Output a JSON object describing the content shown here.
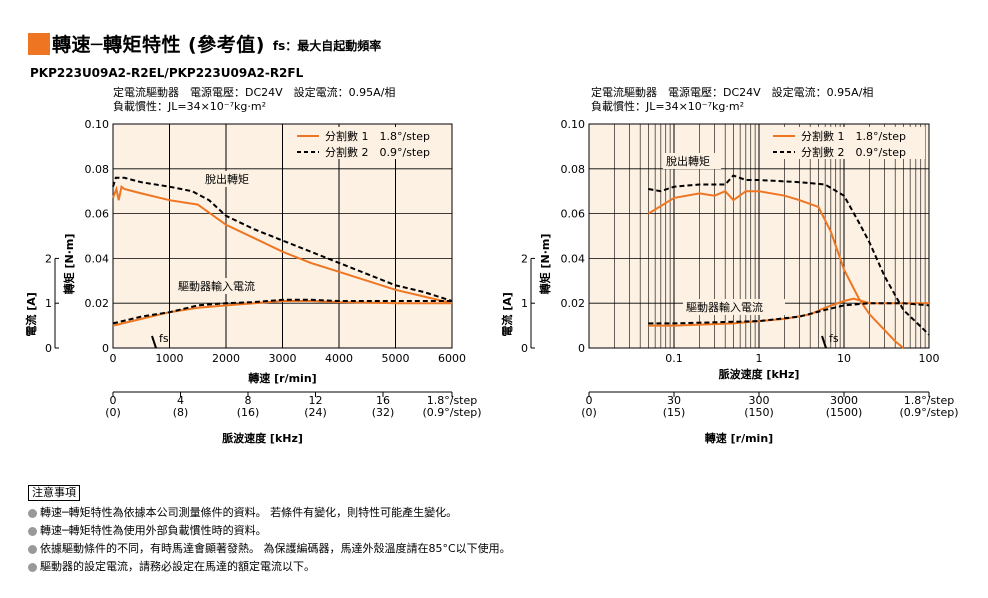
{
  "header": {
    "title": "轉速─轉矩特性 (參考值)",
    "subtitle": "fs：最大自起動頻率",
    "model": "PKP223U09A2-R2EL/PKP223U09A2-R2FL"
  },
  "colors": {
    "orange": "#ee7623",
    "bg": "#fdf1e3",
    "dashed": "#000000"
  },
  "chart_data": [
    {
      "type": "line",
      "conditions": [
        "定電流驅動器　電源電壓：DC24V　設定電流：0.95A/相",
        "負載慣性：JL=34×10⁻⁷kg·m²"
      ],
      "xlabel": "轉速 [r/min]",
      "x_ticks": [
        "0",
        "1000",
        "2000",
        "3000",
        "4000",
        "5000",
        "6000"
      ],
      "xlim": [
        0,
        6000
      ],
      "ylabel": "轉矩 [N·m]",
      "y_ticks": [
        "0",
        "0.02",
        "0.04",
        "0.06",
        "0.08",
        "0.10"
      ],
      "ylim": [
        0,
        0.1
      ],
      "current_label": "電流 [A]",
      "current_ticks": [
        "0",
        "1",
        "2"
      ],
      "sub_axis_label": "脈波速度 [kHz]",
      "sub_axis_ticks_top": [
        "0",
        "4",
        "8",
        "12",
        "16",
        "1.8°/step"
      ],
      "sub_axis_ticks_bottom": [
        "(0)",
        "(8)",
        "(16)",
        "(24)",
        "(32)",
        "(0.9°/step)"
      ],
      "legend": [
        "分割數 1　1.8°/step",
        "分割數 2　0.9°/step"
      ],
      "annotations": {
        "pullout": "脫出轉矩",
        "input_current": "驅動器輸入電流",
        "fs": "fs"
      },
      "series": [
        {
          "name": "分割數 1　1.8°/step",
          "style": "solid",
          "torque": [
            [
              0,
              0.067
            ],
            [
              60,
              0.071
            ],
            [
              100,
              0.066
            ],
            [
              150,
              0.072
            ],
            [
              200,
              0.071
            ],
            [
              500,
              0.069
            ],
            [
              1000,
              0.066
            ],
            [
              1500,
              0.064
            ],
            [
              2000,
              0.055
            ],
            [
              2500,
              0.049
            ],
            [
              3000,
              0.043
            ],
            [
              3500,
              0.038
            ],
            [
              4000,
              0.034
            ],
            [
              4500,
              0.03
            ],
            [
              5000,
              0.026
            ],
            [
              5500,
              0.023
            ],
            [
              6000,
              0.02
            ]
          ],
          "current": [
            [
              0,
              0.01
            ],
            [
              500,
              0.013
            ],
            [
              1000,
              0.016
            ],
            [
              1500,
              0.018
            ],
            [
              2000,
              0.019
            ],
            [
              2500,
              0.02
            ],
            [
              3000,
              0.021
            ],
            [
              3500,
              0.021
            ],
            [
              4000,
              0.0205
            ],
            [
              5000,
              0.02
            ],
            [
              6000,
              0.02
            ]
          ]
        },
        {
          "name": "分割數 2　0.9°/step",
          "style": "dashed",
          "torque": [
            [
              0,
              0.072
            ],
            [
              50,
              0.076
            ],
            [
              200,
              0.076
            ],
            [
              500,
              0.074
            ],
            [
              1000,
              0.072
            ],
            [
              1400,
              0.07
            ],
            [
              1700,
              0.066
            ],
            [
              2000,
              0.059
            ],
            [
              2500,
              0.053
            ],
            [
              3000,
              0.048
            ],
            [
              3500,
              0.043
            ],
            [
              4000,
              0.038
            ],
            [
              4500,
              0.033
            ],
            [
              5000,
              0.028
            ],
            [
              5500,
              0.025
            ],
            [
              6000,
              0.021
            ]
          ],
          "current": [
            [
              0,
              0.011
            ],
            [
              500,
              0.014
            ],
            [
              1000,
              0.016
            ],
            [
              1500,
              0.019
            ],
            [
              2000,
              0.02
            ],
            [
              2500,
              0.0205
            ],
            [
              3000,
              0.0215
            ],
            [
              3500,
              0.0215
            ],
            [
              4000,
              0.021
            ],
            [
              5000,
              0.021
            ],
            [
              6000,
              0.021
            ]
          ]
        }
      ]
    },
    {
      "type": "line",
      "conditions": [
        "定電流驅動器　電源電壓：DC24V　設定電流：0.95A/相",
        "負載慣性：JL=34×10⁻⁷kg·m²"
      ],
      "xlabel": "脈波速度 [kHz]",
      "x_scale": "log",
      "x_ticks": [
        "0.1",
        "1",
        "10",
        "100"
      ],
      "xlim": [
        0.01,
        100
      ],
      "ylabel": "轉矩 [N·m]",
      "y_ticks": [
        "0",
        "0.02",
        "0.04",
        "0.06",
        "0.08",
        "0.10"
      ],
      "ylim": [
        0,
        0.1
      ],
      "current_label": "電流 [A]",
      "current_ticks": [
        "0",
        "1",
        "2"
      ],
      "sub_axis_label": "轉速 [r/min]",
      "sub_axis_ticks_top": [
        "0",
        "30",
        "300",
        "3000",
        "1.8°/step"
      ],
      "sub_axis_ticks_bottom": [
        "(0)",
        "(15)",
        "(150)",
        "(1500)",
        "(0.9°/step)"
      ],
      "legend": [
        "分割數 1　1.8°/step",
        "分割數 2　0.9°/step"
      ],
      "annotations": {
        "pullout": "脫出轉矩",
        "input_current": "驅動器輸入電流",
        "fs": "fs"
      },
      "series": [
        {
          "name": "分割數 1　1.8°/step",
          "style": "solid",
          "torque": [
            [
              0.05,
              0.06
            ],
            [
              0.1,
              0.067
            ],
            [
              0.2,
              0.069
            ],
            [
              0.3,
              0.068
            ],
            [
              0.4,
              0.07
            ],
            [
              0.5,
              0.066
            ],
            [
              0.7,
              0.07
            ],
            [
              1,
              0.07
            ],
            [
              2,
              0.068
            ],
            [
              3,
              0.066
            ],
            [
              5,
              0.063
            ],
            [
              7,
              0.052
            ],
            [
              10,
              0.035
            ],
            [
              15,
              0.022
            ],
            [
              20,
              0.015
            ],
            [
              30,
              0.008
            ],
            [
              40,
              0.003
            ],
            [
              50,
              0.0
            ]
          ],
          "current": [
            [
              0.05,
              0.01
            ],
            [
              0.1,
              0.01
            ],
            [
              0.5,
              0.011
            ],
            [
              1,
              0.012
            ],
            [
              2,
              0.013
            ],
            [
              4,
              0.015
            ],
            [
              6,
              0.018
            ],
            [
              10,
              0.021
            ],
            [
              13,
              0.022
            ],
            [
              20,
              0.02
            ],
            [
              50,
              0.02
            ],
            [
              100,
              0.02
            ]
          ]
        },
        {
          "name": "分割數 2　0.9°/step",
          "style": "dashed",
          "torque": [
            [
              0.05,
              0.071
            ],
            [
              0.07,
              0.07
            ],
            [
              0.1,
              0.072
            ],
            [
              0.2,
              0.073
            ],
            [
              0.4,
              0.073
            ],
            [
              0.5,
              0.077
            ],
            [
              0.7,
              0.075
            ],
            [
              1,
              0.075
            ],
            [
              3,
              0.074
            ],
            [
              6,
              0.073
            ],
            [
              10,
              0.068
            ],
            [
              15,
              0.056
            ],
            [
              20,
              0.047
            ],
            [
              30,
              0.032
            ],
            [
              50,
              0.017
            ],
            [
              100,
              0.006
            ]
          ],
          "current": [
            [
              0.05,
              0.011
            ],
            [
              0.1,
              0.011
            ],
            [
              1,
              0.012
            ],
            [
              3,
              0.014
            ],
            [
              6,
              0.017
            ],
            [
              10,
              0.019
            ],
            [
              20,
              0.02
            ],
            [
              50,
              0.02
            ],
            [
              100,
              0.019
            ]
          ]
        }
      ]
    }
  ],
  "notes": {
    "title": "注意事項",
    "items": [
      "轉速─轉矩特性為依據本公司測量條件的資料。 若條件有變化，則特性可能產生變化。",
      "轉速─轉矩特性為使用外部負載慣性時的資料。",
      "依據驅動條件的不同，有時馬達會顯著發熱。 為保護編碼器，馬達外殼溫度請在85°C以下使用。",
      "驅動器的設定電流，請務必設定在馬達的額定電流以下。"
    ]
  }
}
